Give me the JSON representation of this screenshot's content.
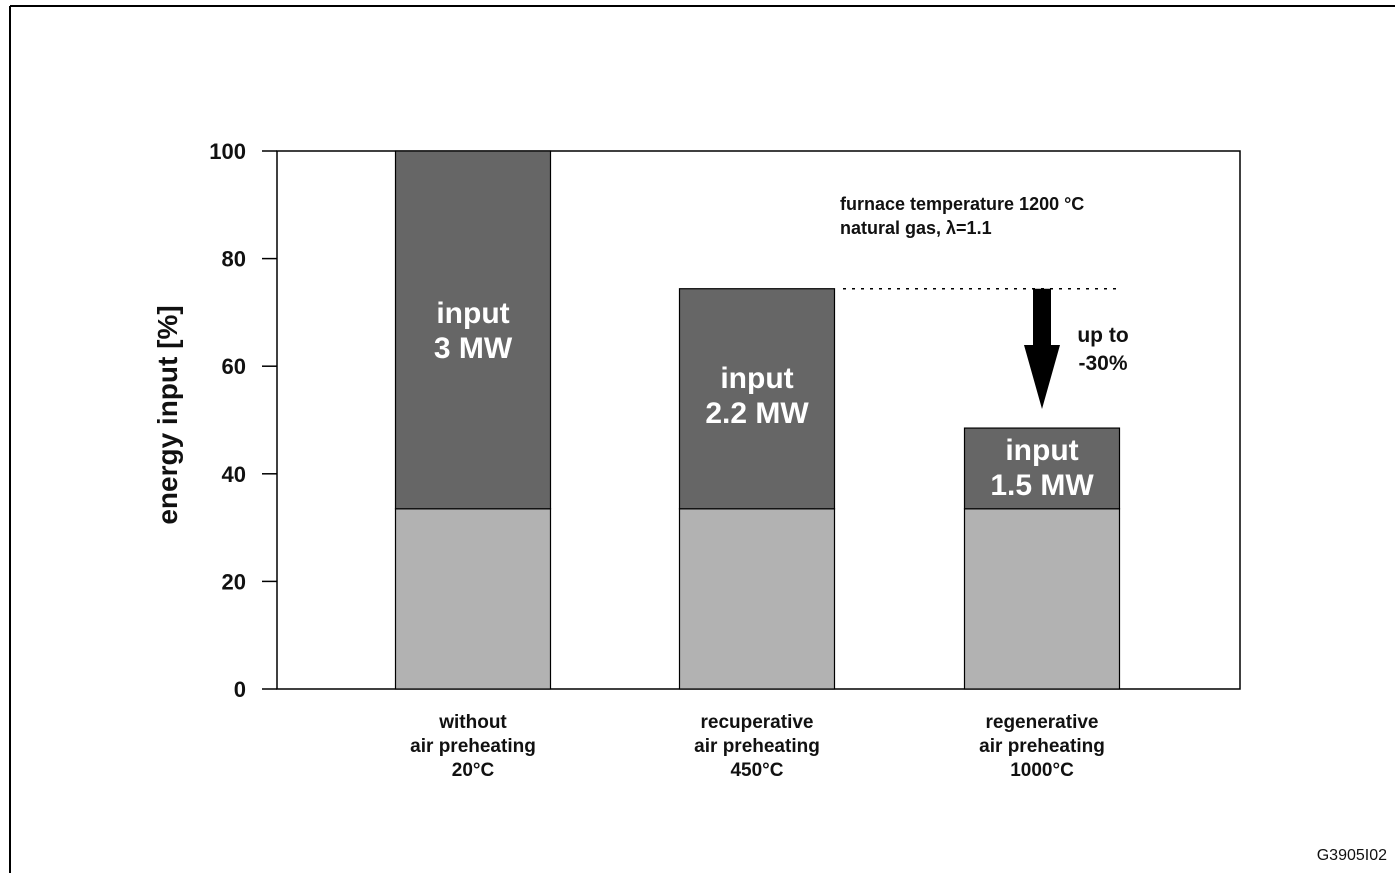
{
  "chart_data": {
    "type": "bar",
    "stacked": true,
    "categories": [
      [
        "without",
        "air preheating",
        "20°C"
      ],
      [
        "recuperative",
        "air preheating",
        "450°C"
      ],
      [
        "regenerative",
        "air preheating",
        "1000°C"
      ]
    ],
    "series": [
      {
        "values": [
          33.5,
          33.5,
          33.5
        ],
        "color": "#b2b2b2"
      },
      {
        "values": [
          66.5,
          40.9,
          15.0
        ],
        "color": "#666666"
      }
    ],
    "bar_labels": [
      [
        "input",
        "3 MW"
      ],
      [
        "input",
        "2.2 MW"
      ],
      [
        "input",
        "1.5 MW"
      ]
    ],
    "ylabel": "energy input [%]",
    "ylim": [
      0,
      100
    ],
    "yticks": [
      0,
      20,
      40,
      60,
      80,
      100
    ],
    "grid": false,
    "annotation": [
      "furnace temperature 1200 °C",
      "natural gas, λ=1.1"
    ],
    "reduction": {
      "label": [
        "up to",
        "-30%"
      ],
      "from_value": 74.4,
      "to_value": 52
    }
  },
  "figure_id": "G3905I02"
}
